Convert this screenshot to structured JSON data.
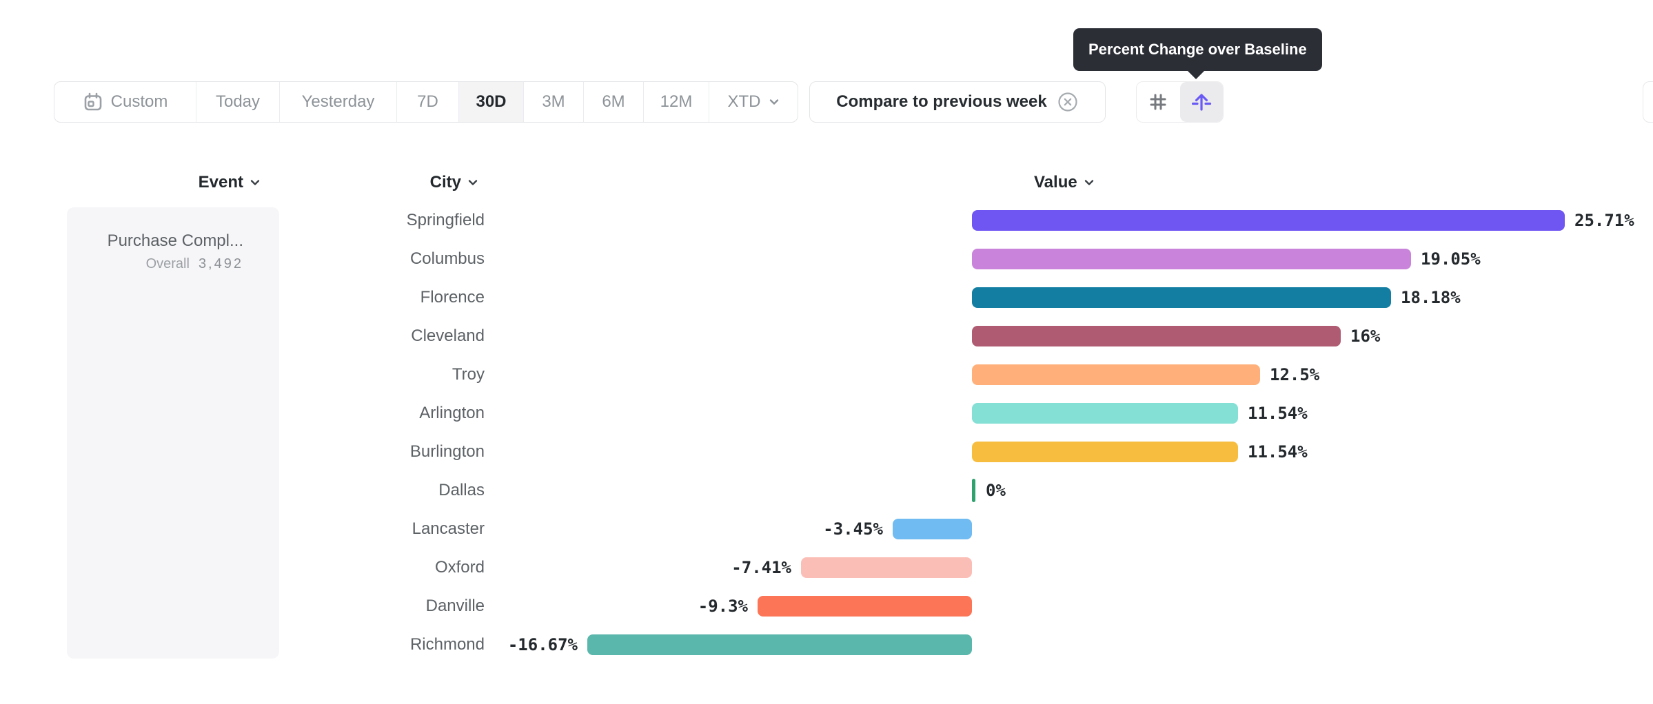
{
  "tooltip": {
    "text": "Percent Change over Baseline",
    "bg": "#2b2e35"
  },
  "toolbar": {
    "ranges": [
      {
        "label": "Custom",
        "icon": "calendar-icon",
        "selected": false,
        "chevron": false
      },
      {
        "label": "Today",
        "selected": false,
        "chevron": false
      },
      {
        "label": "Yesterday",
        "selected": false,
        "chevron": false
      },
      {
        "label": "7D",
        "selected": false,
        "chevron": false
      },
      {
        "label": "30D",
        "selected": true,
        "chevron": false
      },
      {
        "label": "3M",
        "selected": false,
        "chevron": false
      },
      {
        "label": "6M",
        "selected": false,
        "chevron": false
      },
      {
        "label": "12M",
        "selected": false,
        "chevron": false
      },
      {
        "label": "XTD",
        "selected": false,
        "chevron": true
      }
    ],
    "compare_chip": {
      "label": "Compare to previous week",
      "icon": "close-circle-icon"
    },
    "view_toggle": {
      "left_icon": "number-grid-icon",
      "right_icon": "percent-baseline-icon",
      "active": "right",
      "accent": "#6A5AF5"
    }
  },
  "table": {
    "headers": {
      "event": "Event",
      "city": "City",
      "value": "Value"
    },
    "event_cell": {
      "name": "Purchase Compl...",
      "metric_label": "Overall",
      "metric_value": "3,492"
    }
  },
  "chart_data": {
    "type": "bar",
    "orientation": "horizontal",
    "unit": "%",
    "title": "",
    "xlabel": "",
    "ylabel": "",
    "grid": false,
    "legend": false,
    "categories": [
      "Springfield",
      "Columbus",
      "Florence",
      "Cleveland",
      "Troy",
      "Arlington",
      "Burlington",
      "Dallas",
      "Lancaster",
      "Oxford",
      "Danville",
      "Richmond"
    ],
    "values": [
      25.71,
      19.05,
      18.18,
      16,
      12.5,
      11.54,
      11.54,
      0,
      -3.45,
      -7.41,
      -9.3,
      -16.67
    ],
    "labels": [
      "25.71%",
      "19.05%",
      "18.18%",
      "16%",
      "12.5%",
      "11.54%",
      "11.54%",
      "0%",
      "-3.45%",
      "-7.41%",
      "-9.3%",
      "-16.67%"
    ],
    "colors": [
      "#6F55F2",
      "#C983DB",
      "#137EA2",
      "#AF5B72",
      "#FFB07A",
      "#84DFD5",
      "#F6BD3F",
      "#2FA26E",
      "#6FBBF2",
      "#FBBEB6",
      "#FC7557",
      "#5AB7AB"
    ],
    "zero_tick_color": "#2FA26E",
    "xlim": [
      -16.67,
      25.71
    ]
  }
}
